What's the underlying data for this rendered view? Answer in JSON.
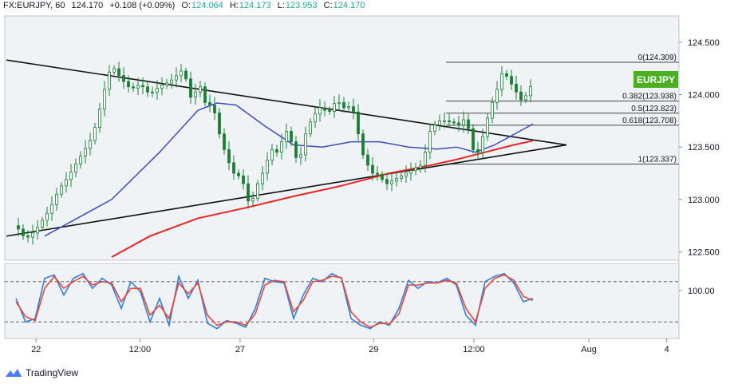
{
  "header": {
    "symbol": "FX:EURJPY, 60",
    "last": "124.170",
    "change": "+0.108 (+0.09%)",
    "o_label": "O:",
    "o": "124.064",
    "h_label": "H:",
    "h": "124.173",
    "l_label": "L:",
    "l": "123.953",
    "c_label": "C:",
    "c": "124.170"
  },
  "badge": "EURJPY",
  "brand": "TradingView",
  "colors": {
    "up": "#26a69a",
    "down": "#ef5350",
    "candle": "#1b7f34",
    "sma_fast": "#3f4ab8",
    "sma_slow": "#e82525",
    "stoch_k": "#2f7fd9",
    "stoch_d": "#e8453c",
    "badge": "#4caf1f"
  },
  "chart_data": {
    "type": "candlestick",
    "symbol": "EURJPY",
    "timeframe": "60",
    "y_axis": {
      "ticks": [
        "122.500",
        "123.000",
        "123.500",
        "124.000",
        "124.500"
      ],
      "range": [
        122.45,
        124.72
      ]
    },
    "x_axis": {
      "ticks": [
        "22",
        "12:00",
        "27",
        "29",
        "12:00",
        "Aug",
        "4"
      ]
    },
    "fibonacci": [
      {
        "label": "0(124.309)",
        "value": 124.309
      },
      {
        "label": "0.382(123.938)",
        "value": 123.938
      },
      {
        "label": "0.5(123.823)",
        "value": 123.823
      },
      {
        "label": "0.618(123.708)",
        "value": 123.708
      },
      {
        "label": "1(123.337)",
        "value": 123.337
      }
    ],
    "close_path": [
      [
        0,
        122.75
      ],
      [
        2,
        122.62
      ],
      [
        4,
        122.7
      ],
      [
        7,
        122.9
      ],
      [
        9,
        123.1
      ],
      [
        11,
        123.22
      ],
      [
        12,
        123.3
      ],
      [
        14,
        123.45
      ],
      [
        16,
        123.6
      ],
      [
        18,
        123.95
      ],
      [
        19,
        124.15
      ],
      [
        20,
        124.28
      ],
      [
        22,
        124.15
      ],
      [
        24,
        124.05
      ],
      [
        26,
        124.1
      ],
      [
        28,
        124.0
      ],
      [
        30,
        124.08
      ],
      [
        32,
        124.12
      ],
      [
        34,
        124.2
      ],
      [
        35,
        124.25
      ],
      [
        36,
        124.05
      ],
      [
        37,
        123.9
      ],
      [
        38,
        124.15
      ],
      [
        39,
        124.0
      ],
      [
        40,
        123.85
      ],
      [
        41,
        123.95
      ],
      [
        42,
        123.7
      ],
      [
        43,
        123.55
      ],
      [
        44,
        123.4
      ],
      [
        45,
        123.3
      ],
      [
        46,
        123.2
      ],
      [
        47,
        123.25
      ],
      [
        48,
        123.05
      ],
      [
        49,
        122.92
      ],
      [
        50,
        123.1
      ],
      [
        51,
        123.2
      ],
      [
        52,
        123.3
      ],
      [
        53,
        123.45
      ],
      [
        54,
        123.5
      ],
      [
        55,
        123.4
      ],
      [
        56,
        123.7
      ],
      [
        57,
        123.6
      ],
      [
        58,
        123.5
      ],
      [
        59,
        123.3
      ],
      [
        60,
        123.55
      ],
      [
        61,
        123.7
      ],
      [
        62,
        123.78
      ],
      [
        63,
        123.85
      ],
      [
        64,
        123.9
      ],
      [
        65,
        123.8
      ],
      [
        66,
        123.88
      ],
      [
        67,
        123.95
      ],
      [
        68,
        123.9
      ],
      [
        69,
        123.85
      ],
      [
        70,
        123.92
      ],
      [
        71,
        123.75
      ],
      [
        72,
        123.5
      ],
      [
        73,
        123.35
      ],
      [
        74,
        123.3
      ],
      [
        75,
        123.2
      ],
      [
        76,
        123.28
      ],
      [
        77,
        123.1
      ],
      [
        78,
        123.2
      ],
      [
        79,
        123.15
      ],
      [
        80,
        123.25
      ],
      [
        81,
        123.2
      ],
      [
        82,
        123.3
      ],
      [
        83,
        123.25
      ],
      [
        84,
        123.35
      ],
      [
        85,
        123.3
      ],
      [
        86,
        123.6
      ],
      [
        87,
        123.7
      ],
      [
        88,
        123.72
      ],
      [
        89,
        123.78
      ],
      [
        90,
        123.72
      ],
      [
        91,
        123.76
      ],
      [
        92,
        123.7
      ],
      [
        93,
        123.72
      ],
      [
        94,
        123.8
      ],
      [
        95,
        123.55
      ],
      [
        96,
        123.4
      ],
      [
        97,
        123.5
      ],
      [
        98,
        123.7
      ],
      [
        99,
        123.85
      ],
      [
        100,
        124.0
      ],
      [
        101,
        124.1
      ],
      [
        102,
        124.3
      ],
      [
        103,
        124.05
      ],
      [
        104,
        124.15
      ],
      [
        105,
        123.9
      ],
      [
        106,
        124.0
      ],
      [
        107,
        123.98
      ],
      [
        108,
        124.17
      ]
    ],
    "series": [
      {
        "name": "SMA fast",
        "points": [
          [
            6,
            122.65
          ],
          [
            20,
            123.0
          ],
          [
            30,
            123.45
          ],
          [
            38,
            123.85
          ],
          [
            42,
            123.92
          ],
          [
            46,
            123.9
          ],
          [
            52,
            123.7
          ],
          [
            58,
            123.52
          ],
          [
            64,
            123.5
          ],
          [
            70,
            123.55
          ],
          [
            76,
            123.55
          ],
          [
            82,
            123.5
          ],
          [
            88,
            123.48
          ],
          [
            92,
            123.5
          ],
          [
            96,
            123.45
          ],
          [
            100,
            123.52
          ],
          [
            104,
            123.62
          ],
          [
            108,
            123.72
          ]
        ]
      },
      {
        "name": "SMA slow",
        "points": [
          [
            20,
            122.45
          ],
          [
            28,
            122.65
          ],
          [
            38,
            122.82
          ],
          [
            48,
            122.92
          ],
          [
            58,
            123.03
          ],
          [
            68,
            123.13
          ],
          [
            78,
            123.25
          ],
          [
            86,
            123.32
          ],
          [
            92,
            123.38
          ],
          [
            98,
            123.45
          ],
          [
            104,
            123.52
          ],
          [
            108,
            123.56
          ]
        ]
      }
    ],
    "trendlines": [
      {
        "from": [
          -2,
          124.33
        ],
        "to": [
          115,
          123.52
        ]
      },
      {
        "from": [
          -2,
          122.65
        ],
        "to": [
          115,
          123.52
        ]
      }
    ],
    "stochastic": {
      "ticks": [
        "100.00"
      ],
      "range": [
        0,
        100
      ],
      "bands": [
        80,
        20
      ],
      "k": [
        [
          0,
          55
        ],
        [
          2,
          20
        ],
        [
          4,
          25
        ],
        [
          6,
          85
        ],
        [
          8,
          90
        ],
        [
          10,
          60
        ],
        [
          12,
          85
        ],
        [
          14,
          92
        ],
        [
          16,
          70
        ],
        [
          18,
          85
        ],
        [
          20,
          75
        ],
        [
          22,
          40
        ],
        [
          24,
          80
        ],
        [
          26,
          65
        ],
        [
          28,
          20
        ],
        [
          30,
          55
        ],
        [
          32,
          15
        ],
        [
          34,
          88
        ],
        [
          36,
          55
        ],
        [
          38,
          82
        ],
        [
          40,
          18
        ],
        [
          42,
          10
        ],
        [
          44,
          22
        ],
        [
          46,
          18
        ],
        [
          48,
          12
        ],
        [
          50,
          40
        ],
        [
          52,
          85
        ],
        [
          54,
          80
        ],
        [
          56,
          78
        ],
        [
          58,
          25
        ],
        [
          60,
          60
        ],
        [
          62,
          85
        ],
        [
          64,
          80
        ],
        [
          66,
          92
        ],
        [
          68,
          85
        ],
        [
          70,
          25
        ],
        [
          72,
          15
        ],
        [
          74,
          10
        ],
        [
          76,
          20
        ],
        [
          78,
          15
        ],
        [
          80,
          40
        ],
        [
          82,
          82
        ],
        [
          84,
          70
        ],
        [
          86,
          80
        ],
        [
          88,
          78
        ],
        [
          90,
          85
        ],
        [
          92,
          75
        ],
        [
          94,
          30
        ],
        [
          96,
          15
        ],
        [
          98,
          80
        ],
        [
          100,
          88
        ],
        [
          102,
          92
        ],
        [
          104,
          78
        ],
        [
          106,
          50
        ],
        [
          108,
          55
        ]
      ],
      "d": [
        [
          0,
          50
        ],
        [
          2,
          28
        ],
        [
          4,
          22
        ],
        [
          6,
          70
        ],
        [
          8,
          88
        ],
        [
          10,
          70
        ],
        [
          12,
          80
        ],
        [
          14,
          88
        ],
        [
          16,
          75
        ],
        [
          18,
          80
        ],
        [
          20,
          78
        ],
        [
          22,
          50
        ],
        [
          24,
          70
        ],
        [
          26,
          70
        ],
        [
          28,
          30
        ],
        [
          30,
          45
        ],
        [
          32,
          25
        ],
        [
          34,
          78
        ],
        [
          36,
          62
        ],
        [
          38,
          78
        ],
        [
          40,
          30
        ],
        [
          42,
          15
        ],
        [
          44,
          20
        ],
        [
          46,
          20
        ],
        [
          48,
          15
        ],
        [
          50,
          32
        ],
        [
          52,
          75
        ],
        [
          54,
          82
        ],
        [
          56,
          80
        ],
        [
          58,
          35
        ],
        [
          60,
          52
        ],
        [
          62,
          80
        ],
        [
          64,
          82
        ],
        [
          66,
          88
        ],
        [
          68,
          86
        ],
        [
          70,
          35
        ],
        [
          72,
          20
        ],
        [
          74,
          12
        ],
        [
          76,
          18
        ],
        [
          78,
          17
        ],
        [
          80,
          32
        ],
        [
          82,
          75
        ],
        [
          84,
          75
        ],
        [
          86,
          78
        ],
        [
          88,
          78
        ],
        [
          90,
          82
        ],
        [
          92,
          78
        ],
        [
          94,
          40
        ],
        [
          96,
          20
        ],
        [
          98,
          70
        ],
        [
          100,
          85
        ],
        [
          102,
          90
        ],
        [
          104,
          82
        ],
        [
          106,
          58
        ],
        [
          108,
          52
        ]
      ]
    }
  }
}
